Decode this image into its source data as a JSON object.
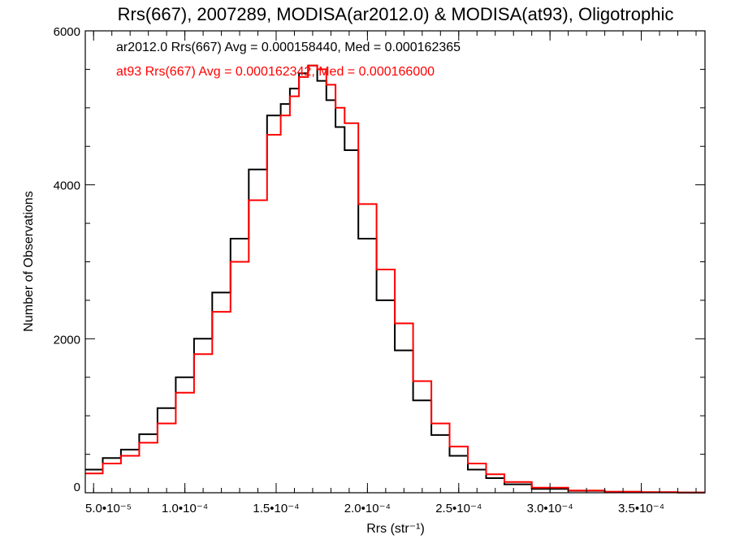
{
  "chart_data": {
    "type": "line",
    "title": "Rrs(667), 2007289, MODISA(ar2012.0) & MODISA(at93), Oligotrophic",
    "xlabel": "Rrs (str⁻¹)",
    "ylabel": "Number of Observations",
    "xlim": [
      4.545e-05,
      0.0003849
    ],
    "ylim": [
      0,
      6000
    ],
    "x_ticks": [
      {
        "value": 5e-05,
        "label": "5.0•10⁻⁵"
      },
      {
        "value": 0.0001,
        "label": "1.0•10⁻⁴"
      },
      {
        "value": 0.00015,
        "label": "1.5•10⁻⁴"
      },
      {
        "value": 0.0002,
        "label": "2.0•10⁻⁴"
      },
      {
        "value": 0.00025,
        "label": "2.5•10⁻⁴"
      },
      {
        "value": 0.0003,
        "label": "3.0•10⁻⁴"
      },
      {
        "value": 0.00035,
        "label": "3.5•10⁻⁴"
      }
    ],
    "y_ticks": [
      {
        "value": 0,
        "label": "0"
      },
      {
        "value": 2000,
        "label": "2000"
      },
      {
        "value": 4000,
        "label": "4000"
      },
      {
        "value": 6000,
        "label": "6000"
      }
    ],
    "grid": false,
    "series": [
      {
        "name": "ar2012.0",
        "color": "#000000",
        "annotation": "ar2012.0 Rrs(667) Avg = 0.000158440, Med = 0.000162365",
        "x": [
          5e-05,
          6e-05,
          7e-05,
          8e-05,
          9e-05,
          0.0001,
          0.00011,
          0.00012,
          0.00013,
          0.00014,
          0.00015,
          0.000155,
          0.00016,
          0.000165,
          0.00017,
          0.000175,
          0.00018,
          0.000185,
          0.00019,
          0.0002,
          0.00021,
          0.00022,
          0.00023,
          0.00024,
          0.00025,
          0.00026,
          0.00027,
          0.00028,
          0.0003,
          0.00032,
          0.00034,
          0.00036,
          0.00038
        ],
        "values": [
          300,
          450,
          560,
          760,
          1100,
          1500,
          2000,
          2600,
          3300,
          4200,
          4900,
          5050,
          5250,
          5450,
          5550,
          5350,
          5100,
          4750,
          4450,
          3300,
          2500,
          1850,
          1200,
          750,
          480,
          300,
          190,
          110,
          50,
          25,
          12,
          6,
          3
        ]
      },
      {
        "name": "at93",
        "color": "#ff0000",
        "annotation": "at93 Rrs(667) Avg = 0.000162342, Med = 0.000166000",
        "x": [
          5e-05,
          6e-05,
          7e-05,
          8e-05,
          9e-05,
          0.0001,
          0.00011,
          0.00012,
          0.00013,
          0.00014,
          0.00015,
          0.000155,
          0.00016,
          0.000165,
          0.00017,
          0.000175,
          0.00018,
          0.000185,
          0.00019,
          0.0002,
          0.00021,
          0.00022,
          0.00023,
          0.00024,
          0.00025,
          0.00026,
          0.00027,
          0.00028,
          0.0003,
          0.00032,
          0.00034,
          0.00036,
          0.00038
        ],
        "values": [
          250,
          380,
          480,
          650,
          900,
          1300,
          1800,
          2350,
          3000,
          3800,
          4650,
          4900,
          5150,
          5400,
          5550,
          5500,
          5300,
          5000,
          4800,
          3750,
          2900,
          2200,
          1450,
          900,
          600,
          380,
          240,
          140,
          65,
          30,
          14,
          7,
          3
        ]
      }
    ]
  }
}
